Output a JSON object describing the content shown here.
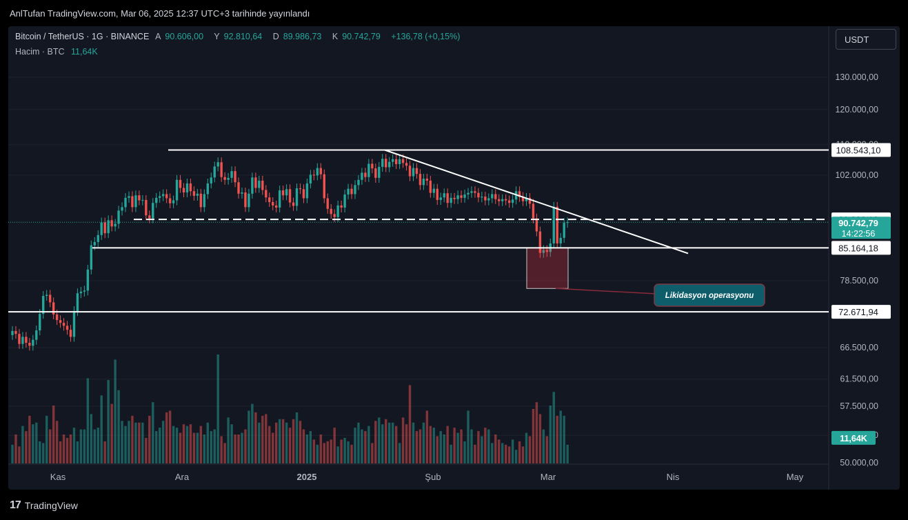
{
  "header": {
    "published": "AnlTufan TradingView.com, Mar 06, 2025 12:37 UTC+3 tarihinde yayınlandı"
  },
  "legend": {
    "symbol": "Bitcoin / TetherUS · 1G · BINANCE",
    "o_label": "A",
    "o_value": "90.606,00",
    "h_label": "Y",
    "h_value": "92.810,64",
    "l_label": "D",
    "l_value": "89.986,73",
    "c_label": "K",
    "c_value": "90.742,79",
    "change": "+136,78 (+0,15%)",
    "volume_label": "Hacim · BTC",
    "volume_value": "11,64K"
  },
  "currency_button": "USDT",
  "footer": {
    "brand": "TradingView"
  },
  "colors": {
    "up": "#26a69a",
    "down": "#ef5350",
    "background": "#131722",
    "line": "#ffffff"
  },
  "chart_data": {
    "type": "candlestick",
    "x_ticks": [
      "Kas",
      "Ara",
      "2025",
      "Şub",
      "Mar",
      "Nis",
      "May"
    ],
    "y_ticks": [
      "130.000,00",
      "120.000,00",
      "110.000,00",
      "102.000,00",
      "78.500,00",
      "66.500,00",
      "61.500,00",
      "57.500,00",
      "53.500,00",
      "50.000,00"
    ],
    "y_scale": "log",
    "horizontal_levels": [
      {
        "value": 108543.1,
        "label": "108.543,10"
      },
      {
        "value": 91386.1,
        "label": "91.386,10"
      },
      {
        "value": 85164.18,
        "label": "85.164,18"
      },
      {
        "value": 72671.94,
        "label": "72.671,94"
      }
    ],
    "last_price": {
      "value": 90742.79,
      "label": "90.742,79",
      "countdown": "14:22:56"
    },
    "volume_last_label": "11,64K",
    "annotation": "Likidasyon operasyonu",
    "closes": [
      69300,
      68800,
      67100,
      68300,
      67300,
      66800,
      67800,
      69400,
      72300,
      75600,
      75800,
      74400,
      72200,
      71200,
      70700,
      70200,
      69500,
      68300,
      72800,
      76100,
      76400,
      76600,
      80700,
      85700,
      86400,
      87900,
      90700,
      88300,
      91200,
      89800,
      90400,
      93400,
      94200,
      96400,
      96800,
      94200,
      97000,
      95800,
      95900,
      92300,
      91600,
      95200,
      96400,
      96800,
      97300,
      96300,
      95100,
      95800,
      100800,
      98800,
      97700,
      99900,
      98000,
      96900,
      97400,
      94200,
      97300,
      99900,
      101400,
      104200,
      105300,
      101500,
      100800,
      101300,
      103000,
      100200,
      97400,
      97700,
      94200,
      97400,
      101400,
      98800,
      100600,
      98300,
      96500,
      95400,
      94600,
      94100,
      98200,
      97000,
      98500,
      95300,
      94500,
      98700,
      98500,
      96300,
      99900,
      102100,
      101900,
      103800,
      102200,
      96300,
      93800,
      92600,
      91900,
      94600,
      94100,
      97200,
      98600,
      97300,
      99500,
      100800,
      102600,
      101500,
      104900,
      103700,
      101300,
      104100,
      106200,
      104000,
      105400,
      106100,
      104800,
      106100,
      105100,
      104400,
      101700,
      103800,
      102300,
      99500,
      101100,
      100600,
      97600,
      98600,
      95900,
      96500,
      97500,
      95200,
      96400,
      96100,
      97000,
      96400,
      97200,
      97600,
      98000,
      97600,
      96500,
      96700,
      95800,
      96300,
      97300,
      96100,
      95600,
      96100,
      95800,
      95200,
      96000,
      98000,
      96600,
      95600,
      96400,
      95000,
      91600,
      88700,
      84100,
      84700,
      84300,
      86100,
      94300,
      86100,
      87300,
      90600,
      90743
    ],
    "volumes": [
      11,
      17,
      10,
      22,
      19,
      28,
      23,
      24,
      13,
      12,
      28,
      20,
      34,
      25,
      13,
      17,
      15,
      17,
      21,
      13,
      20,
      20,
      50,
      29,
      20,
      21,
      40,
      13,
      49,
      35,
      61,
      43,
      25,
      22,
      25,
      28,
      24,
      24,
      24,
      15,
      28,
      36,
      19,
      21,
      25,
      30,
      31,
      22,
      21,
      18,
      23,
      22,
      23,
      18,
      18,
      22,
      17,
      24,
      19,
      20,
      64,
      16,
      12,
      27,
      23,
      17,
      17,
      18,
      20,
      31,
      35,
      30,
      24,
      28,
      29,
      22,
      18,
      24,
      26,
      26,
      24,
      21,
      26,
      30,
      25,
      20,
      17,
      19,
      14,
      11,
      17,
      12,
      13,
      14,
      21,
      10,
      14,
      15,
      13,
      11,
      21,
      24,
      20,
      19,
      22,
      12,
      25,
      27,
      23,
      26,
      24,
      24,
      22,
      12,
      27,
      23,
      46,
      24,
      19,
      20,
      24,
      31,
      22,
      21,
      16,
      19,
      17,
      22,
      11,
      21,
      18,
      20,
      13,
      31,
      20,
      11,
      19,
      16,
      21,
      20,
      12,
      17,
      14,
      12,
      11,
      10,
      14,
      8,
      13,
      10,
      18,
      16,
      32,
      36,
      29,
      20,
      16,
      34,
      42,
      28,
      31,
      28,
      11
    ]
  }
}
